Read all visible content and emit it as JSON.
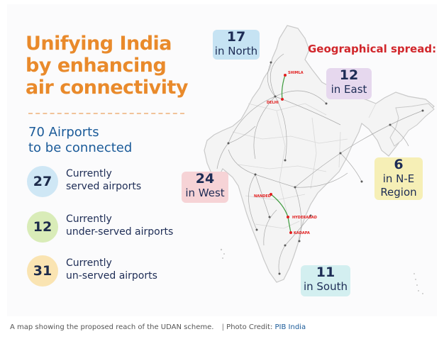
{
  "infographic": {
    "title_lines": [
      "Unifying India",
      "by enhancing",
      "air connectivity"
    ],
    "airports_heading_lines": [
      "70 Airports",
      "to be connected"
    ],
    "stats": [
      {
        "value": "27",
        "lines": [
          "Currently",
          "served airports"
        ],
        "color": "#cfe7f5"
      },
      {
        "value": "12",
        "lines": [
          "Currently",
          "under-served airports"
        ],
        "color": "#d9ecb8"
      },
      {
        "value": "31",
        "lines": [
          "Currently",
          "un-served airports"
        ],
        "color": "#fae4b2"
      }
    ],
    "geo_label": "Geographical spread:",
    "regions": {
      "north": {
        "value": "17",
        "label": "in North",
        "color": "#c6e3f3"
      },
      "east": {
        "value": "12",
        "label": "in East",
        "color": "#e6d8ee"
      },
      "west": {
        "value": "24",
        "label": "in West",
        "color": "#f6d3d6"
      },
      "ne": {
        "value": "6",
        "label_lines": [
          "in N-E",
          "Region"
        ],
        "color": "#f6efb6"
      },
      "south": {
        "value": "11",
        "label": "in South",
        "color": "#d3eff0"
      }
    },
    "map_labels": [
      "SHIMLA",
      "DELHI",
      "HYDERABAD",
      "NANDED",
      "KADAPA"
    ]
  },
  "caption": {
    "text": "A map showing the proposed reach of the UDAN scheme.",
    "separator": "|",
    "credit_prefix": "Photo Credit:",
    "credit_link": "PIB India"
  },
  "colors": {
    "title_orange": "#e98a2b",
    "heading_blue": "#1b5b99",
    "route_gray": "#a9a9a9",
    "highlight_route": "#3e9b3e",
    "highlight_city": "#e22020"
  }
}
